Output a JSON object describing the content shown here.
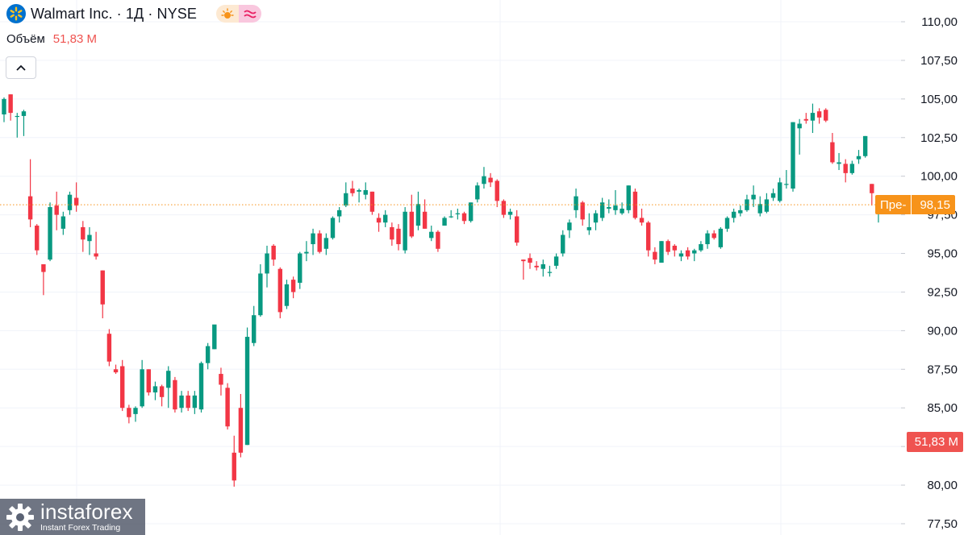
{
  "legend": {
    "symbol_title": "Walmart Inc. · 1Д · NYSE",
    "volume_label": "Объём",
    "volume_value": "51,83 M"
  },
  "price_label": {
    "prefix": "Пре-",
    "value": "98,15"
  },
  "volume_axis_label": "51,83 M",
  "watermark": {
    "brand": "instaforex",
    "tagline": "Instant Forex Trading"
  },
  "colors": {
    "up": "#089981",
    "down": "#f23645",
    "price_line": "#f7931a",
    "volume_label": "#ef5350",
    "grid": "#f0f3fa"
  },
  "icons": {
    "logo": "walmart-spark-icon",
    "session": "sun-icon",
    "wave": "wave-icon",
    "collapse": "chevron-up-icon"
  },
  "chart_data": {
    "type": "candlestick",
    "y_axis": {
      "min": 77.5,
      "max": 110.0,
      "ticks": [
        "77,50",
        "80,00",
        "82,50",
        "85,00",
        "87,50",
        "90,00",
        "92,50",
        "95,00",
        "97,50",
        "100,00",
        "102,50",
        "105,00",
        "107,50",
        "110,00"
      ],
      "tick_values": [
        77.5,
        80,
        82.5,
        85,
        87.5,
        90,
        92.5,
        95,
        97.5,
        100,
        102.5,
        105,
        107.5,
        110
      ]
    },
    "last_price": 98.15,
    "candles": [
      [
        104.0,
        105.1,
        103.5,
        105.0
      ],
      [
        105.3,
        105.3,
        103.6,
        104.1
      ],
      [
        103.9,
        104.1,
        102.5,
        103.9
      ],
      [
        103.9,
        104.3,
        102.6,
        104.2
      ],
      [
        98.7,
        101.1,
        96.7,
        97.2
      ],
      [
        96.8,
        96.9,
        94.9,
        95.2
      ],
      [
        94.3,
        94.3,
        92.3,
        93.8
      ],
      [
        94.6,
        98.3,
        94.5,
        98.0
      ],
      [
        98.1,
        99.0,
        96.5,
        97.5
      ],
      [
        96.6,
        97.7,
        96.2,
        97.4
      ],
      [
        97.8,
        99.0,
        97.5,
        98.8
      ],
      [
        98.6,
        99.6,
        97.7,
        98.1
      ],
      [
        96.7,
        97.1,
        95.1,
        95.9
      ],
      [
        95.8,
        96.7,
        94.9,
        96.2
      ],
      [
        95.0,
        96.4,
        94.6,
        94.8
      ],
      [
        93.9,
        93.9,
        90.8,
        91.7
      ],
      [
        89.8,
        90.1,
        87.7,
        88.0
      ],
      [
        87.5,
        87.8,
        87.2,
        87.3
      ],
      [
        87.7,
        88.1,
        84.8,
        85.0
      ],
      [
        85.0,
        85.2,
        84.0,
        84.4
      ],
      [
        84.6,
        85.1,
        84.1,
        85.0
      ],
      [
        85.1,
        88.1,
        85.0,
        87.5
      ],
      [
        87.5,
        87.5,
        85.8,
        86.0
      ],
      [
        86.0,
        86.7,
        85.5,
        86.4
      ],
      [
        86.4,
        86.5,
        85.1,
        85.7
      ],
      [
        86.3,
        87.7,
        85.0,
        87.4
      ],
      [
        86.8,
        87.0,
        84.7,
        84.9
      ],
      [
        85.0,
        86.1,
        84.7,
        85.8
      ],
      [
        85.8,
        86.1,
        84.8,
        85.0
      ],
      [
        85.0,
        86.1,
        84.6,
        85.8
      ],
      [
        84.9,
        88.0,
        84.7,
        87.9
      ],
      [
        87.9,
        89.2,
        87.5,
        89.0
      ],
      [
        88.8,
        90.2,
        88.8,
        90.4
      ],
      [
        87.2,
        87.6,
        85.8,
        86.5
      ],
      [
        86.3,
        86.6,
        83.6,
        83.8
      ],
      [
        82.1,
        83.2,
        79.9,
        80.3
      ],
      [
        85.0,
        85.9,
        81.8,
        82.1
      ],
      [
        82.6,
        90.2,
        82.6,
        89.6
      ],
      [
        89.2,
        91.6,
        89.0,
        91.0
      ],
      [
        91.0,
        94.3,
        90.9,
        93.7
      ],
      [
        93.7,
        95.5,
        92.8,
        95.0
      ],
      [
        95.5,
        95.6,
        94.2,
        94.6
      ],
      [
        94.0,
        94.1,
        90.8,
        91.2
      ],
      [
        91.6,
        93.3,
        91.4,
        93.0
      ],
      [
        93.3,
        93.5,
        92.1,
        92.5
      ],
      [
        93.1,
        95.1,
        92.7,
        95.0
      ],
      [
        95.0,
        95.8,
        94.5,
        95.1
      ],
      [
        95.6,
        96.6,
        94.9,
        96.3
      ],
      [
        96.3,
        96.5,
        95.0,
        95.1
      ],
      [
        95.3,
        96.3,
        94.9,
        96.0
      ],
      [
        96.0,
        97.4,
        95.9,
        97.3
      ],
      [
        97.4,
        98.0,
        97.0,
        97.8
      ],
      [
        98.1,
        99.6,
        98.0,
        98.9
      ],
      [
        99.2,
        99.7,
        98.7,
        98.9
      ],
      [
        99.0,
        99.2,
        98.3,
        99.1
      ],
      [
        98.8,
        99.6,
        98.5,
        99.1
      ],
      [
        99.0,
        99.0,
        97.5,
        97.7
      ],
      [
        97.3,
        97.6,
        96.4,
        97.0
      ],
      [
        97.0,
        97.8,
        96.7,
        97.5
      ],
      [
        96.7,
        97.0,
        95.5,
        95.9
      ],
      [
        96.6,
        96.9,
        95.2,
        95.6
      ],
      [
        95.2,
        98.0,
        95.0,
        97.7
      ],
      [
        97.7,
        98.8,
        96.0,
        96.1
      ],
      [
        96.8,
        99.0,
        96.5,
        98.2
      ],
      [
        97.7,
        98.5,
        96.6,
        96.6
      ],
      [
        96.0,
        96.8,
        95.8,
        96.4
      ],
      [
        96.4,
        96.5,
        95.1,
        95.3
      ],
      [
        96.8,
        97.4,
        96.8,
        97.3
      ],
      [
        97.4,
        97.8,
        97.3,
        97.4
      ],
      [
        97.6,
        97.9,
        97.2,
        97.6
      ],
      [
        97.6,
        97.7,
        96.9,
        97.1
      ],
      [
        97.1,
        98.3,
        97.0,
        98.3
      ],
      [
        98.5,
        99.6,
        98.3,
        99.4
      ],
      [
        99.5,
        100.6,
        99.2,
        100.0
      ],
      [
        99.9,
        100.2,
        99.3,
        99.6
      ],
      [
        99.7,
        99.8,
        98.0,
        98.4
      ],
      [
        98.4,
        98.5,
        97.3,
        97.5
      ],
      [
        97.5,
        97.9,
        97.2,
        97.7
      ],
      [
        97.4,
        97.8,
        95.5,
        95.7
      ],
      [
        94.6,
        94.6,
        93.3,
        94.5
      ],
      [
        94.7,
        95.0,
        94.0,
        94.4
      ],
      [
        94.2,
        94.5,
        93.9,
        94.1
      ],
      [
        94.0,
        94.6,
        93.5,
        94.3
      ],
      [
        93.8,
        94.2,
        93.5,
        93.8
      ],
      [
        94.2,
        95.0,
        94.0,
        94.8
      ],
      [
        95.0,
        96.5,
        94.8,
        96.2
      ],
      [
        96.5,
        97.2,
        96.0,
        97.0
      ],
      [
        97.8,
        99.2,
        97.3,
        98.7
      ],
      [
        98.3,
        98.4,
        96.8,
        97.2
      ],
      [
        96.5,
        97.6,
        96.2,
        96.7
      ],
      [
        97.0,
        97.8,
        96.5,
        97.6
      ],
      [
        97.3,
        98.6,
        97.1,
        98.3
      ],
      [
        97.9,
        98.5,
        97.6,
        98.0
      ],
      [
        97.8,
        99.1,
        97.5,
        98.1
      ],
      [
        97.6,
        98.3,
        97.5,
        97.9
      ],
      [
        97.8,
        99.4,
        97.6,
        99.4
      ],
      [
        99.0,
        99.2,
        97.2,
        97.3
      ],
      [
        97.3,
        97.9,
        96.8,
        97.0
      ],
      [
        97.0,
        97.1,
        94.8,
        95.2
      ],
      [
        95.1,
        95.4,
        94.3,
        94.6
      ],
      [
        94.4,
        95.8,
        94.4,
        95.8
      ],
      [
        95.8,
        95.9,
        94.9,
        95.1
      ],
      [
        95.5,
        95.6,
        94.8,
        95.2
      ],
      [
        94.8,
        95.2,
        94.5,
        95.0
      ],
      [
        95.2,
        95.4,
        94.6,
        94.8
      ],
      [
        95.0,
        95.3,
        94.5,
        95.2
      ],
      [
        95.2,
        95.8,
        95.1,
        95.6
      ],
      [
        95.6,
        96.5,
        95.3,
        96.3
      ],
      [
        96.3,
        96.5,
        95.9,
        96.0
      ],
      [
        95.4,
        96.7,
        95.3,
        96.6
      ],
      [
        96.6,
        97.4,
        96.4,
        97.3
      ],
      [
        97.3,
        97.9,
        97.0,
        97.7
      ],
      [
        97.6,
        98.1,
        97.4,
        97.8
      ],
      [
        97.8,
        98.8,
        97.7,
        98.5
      ],
      [
        98.5,
        99.4,
        98.0,
        98.8
      ],
      [
        97.6,
        98.7,
        97.4,
        98.2
      ],
      [
        97.7,
        98.9,
        97.6,
        98.5
      ],
      [
        98.6,
        99.2,
        98.4,
        98.9
      ],
      [
        98.4,
        99.9,
        98.3,
        99.6
      ],
      [
        99.5,
        100.4,
        99.2,
        99.5
      ],
      [
        99.2,
        103.5,
        99.0,
        103.5
      ],
      [
        103.1,
        103.7,
        101.4,
        103.4
      ],
      [
        103.7,
        104.1,
        103.4,
        103.6
      ],
      [
        103.6,
        104.7,
        102.8,
        104.1
      ],
      [
        104.2,
        104.4,
        103.4,
        103.8
      ],
      [
        104.3,
        104.4,
        103.5,
        103.6
      ],
      [
        102.2,
        102.8,
        100.8,
        100.9
      ],
      [
        100.8,
        101.5,
        100.4,
        100.9
      ],
      [
        100.8,
        101.1,
        99.6,
        100.2
      ],
      [
        100.2,
        101.0,
        100.1,
        100.8
      ],
      [
        101.1,
        101.7,
        100.8,
        101.3
      ],
      [
        101.3,
        102.6,
        101.2,
        102.6
      ],
      [
        99.5,
        99.5,
        98.1,
        98.9
      ],
      [
        98.0,
        98.4,
        97.0,
        98.1
      ]
    ]
  }
}
